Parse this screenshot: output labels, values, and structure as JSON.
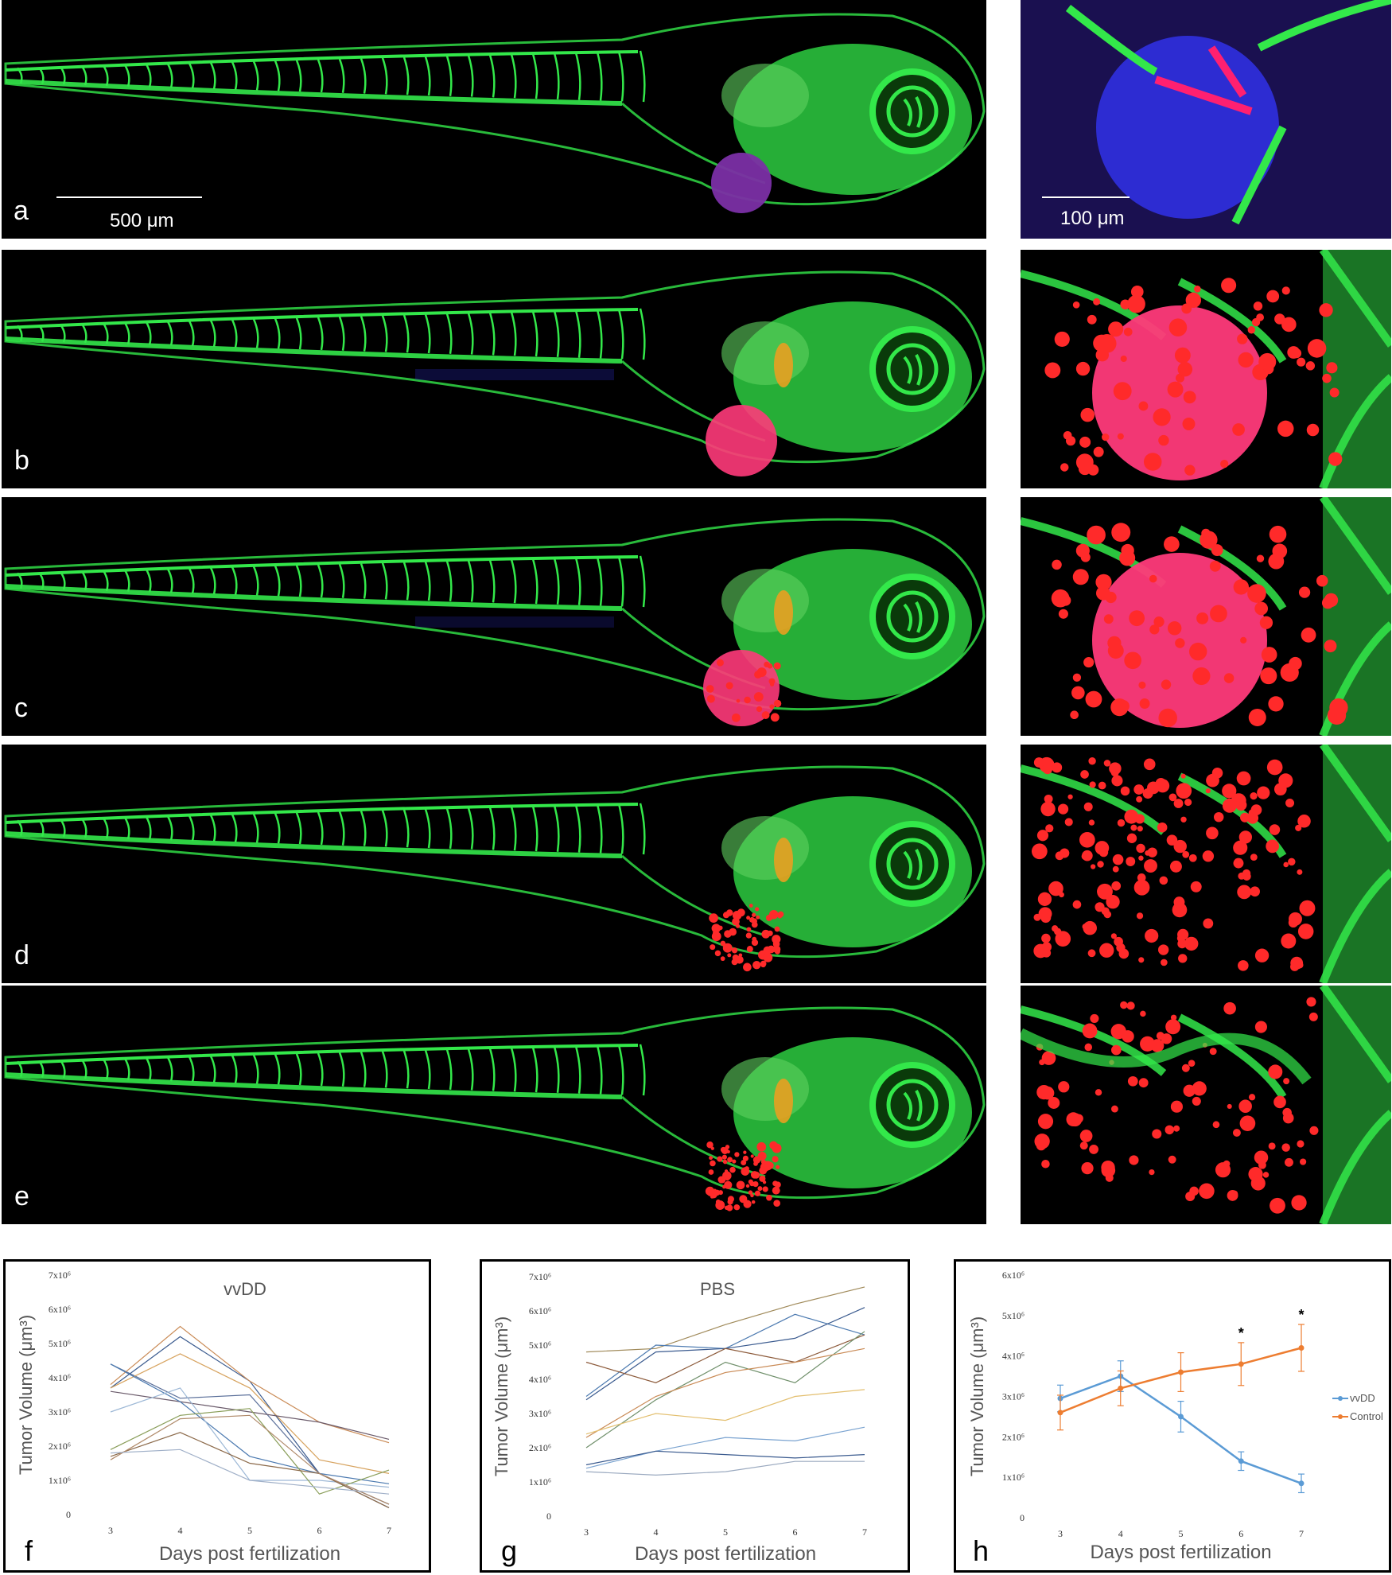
{
  "image_panels": [
    {
      "label": "a",
      "scale_label": "500 μm",
      "zoom_scale_label": "100 μm"
    },
    {
      "label": "b"
    },
    {
      "label": "c"
    },
    {
      "label": "d"
    },
    {
      "label": "e"
    }
  ],
  "colors": {
    "vessel_green": "#33e84a",
    "tumor_red": "#ff2a2a",
    "tumor_pink": "#ff3a7a",
    "nuclear_blue": "#3030e0",
    "background": "#000000",
    "vvdd_line": "#5b9bd5",
    "control_line": "#ed7d31"
  },
  "chart_data": [
    {
      "panel_label": "f",
      "type": "line",
      "title": "vvDD",
      "xlabel": "Days post fertilization",
      "ylabel": "Tumor Volume (μm³)",
      "x": [
        3,
        4,
        5,
        6,
        7
      ],
      "ylim": [
        0,
        7000000
      ],
      "yticks": [
        "0",
        "1x10⁶",
        "2x10⁶",
        "3x10⁶",
        "4x10⁶",
        "5x10⁶",
        "6x10⁶",
        "7x10⁶"
      ],
      "series": [
        {
          "color": "#5a6f99",
          "values": [
            4400000,
            3400000,
            3500000,
            1200000,
            200000
          ]
        },
        {
          "color": "#3b5b8f",
          "values": [
            3700000,
            5200000,
            3900000,
            1200000,
            300000
          ]
        },
        {
          "color": "#d7a35f",
          "values": [
            3700000,
            4700000,
            3700000,
            1600000,
            1200000
          ]
        },
        {
          "color": "#c98a55",
          "values": [
            3800000,
            5500000,
            3900000,
            2700000,
            2100000
          ]
        },
        {
          "color": "#6a5a6a",
          "values": [
            3600000,
            3300000,
            3000000,
            2700000,
            2200000
          ]
        },
        {
          "color": "#4c7ab0",
          "values": [
            4400000,
            3300000,
            1700000,
            1200000,
            900000
          ]
        },
        {
          "color": "#9db8d6",
          "values": [
            3000000,
            3700000,
            1000000,
            1000000,
            800000
          ]
        },
        {
          "color": "#8a9e5a",
          "values": [
            1900000,
            2900000,
            3100000,
            600000,
            1300000
          ]
        },
        {
          "color": "#8c6a4a",
          "values": [
            1700000,
            2400000,
            1500000,
            1200000,
            200000
          ]
        },
        {
          "color": "#b08a6a",
          "values": [
            1600000,
            2800000,
            2900000,
            1200000,
            300000
          ]
        },
        {
          "color": "#a0b0c8",
          "values": [
            1800000,
            1900000,
            1000000,
            800000,
            600000
          ]
        }
      ]
    },
    {
      "panel_label": "g",
      "type": "line",
      "title": "PBS",
      "xlabel": "Days post fertilization",
      "ylabel": "Tumor Volume (μm³)",
      "x": [
        3,
        4,
        5,
        6,
        7
      ],
      "ylim": [
        0,
        7000000
      ],
      "yticks": [
        "0",
        "1x10⁶",
        "2x10⁶",
        "3x10⁶",
        "4x10⁶",
        "5x10⁶",
        "6x10⁶",
        "7x10⁶"
      ],
      "series": [
        {
          "color": "#a08a5a",
          "values": [
            4800000,
            4900000,
            5600000,
            6200000,
            6700000
          ]
        },
        {
          "color": "#4c7ab0",
          "values": [
            3500000,
            5000000,
            4900000,
            5900000,
            5300000
          ]
        },
        {
          "color": "#3b5b8f",
          "values": [
            3400000,
            4800000,
            4900000,
            5200000,
            6100000
          ]
        },
        {
          "color": "#8c5a3a",
          "values": [
            4500000,
            3900000,
            4900000,
            4500000,
            5300000
          ]
        },
        {
          "color": "#6f8f6a",
          "values": [
            2000000,
            3400000,
            4500000,
            3900000,
            5400000
          ]
        },
        {
          "color": "#c98a55",
          "values": [
            2300000,
            3500000,
            4200000,
            4500000,
            4900000
          ]
        },
        {
          "color": "#e3bf6f",
          "values": [
            2400000,
            3000000,
            2800000,
            3500000,
            3700000
          ]
        },
        {
          "color": "#7aa3d0",
          "values": [
            1400000,
            1900000,
            2300000,
            2200000,
            2600000
          ]
        },
        {
          "color": "#3b5b8f",
          "values": [
            1500000,
            1900000,
            1800000,
            1700000,
            1800000
          ]
        },
        {
          "color": "#9aa9bf",
          "values": [
            1300000,
            1200000,
            1300000,
            1600000,
            1600000
          ]
        }
      ]
    },
    {
      "panel_label": "h",
      "type": "line",
      "title": "",
      "xlabel": "Days post fertilization",
      "ylabel": "Tumor Volume (μm³)",
      "x": [
        3,
        4,
        5,
        6,
        7
      ],
      "ylim": [
        0,
        6000000
      ],
      "yticks": [
        "0",
        "1x10⁶",
        "2x10⁶",
        "3x10⁶",
        "4x10⁶",
        "5x10⁶",
        "6x10⁶"
      ],
      "legend_position": "right",
      "significance": [
        {
          "x": 6,
          "label": "*"
        },
        {
          "x": 7,
          "label": "*"
        }
      ],
      "series": [
        {
          "name": "vvDD",
          "color": "#5b9bd5",
          "values": [
            2950000,
            3500000,
            2500000,
            1400000,
            850000
          ],
          "errors": [
            330000,
            380000,
            380000,
            230000,
            230000
          ]
        },
        {
          "name": "Control",
          "color": "#ed7d31",
          "values": [
            2600000,
            3200000,
            3600000,
            3800000,
            4200000
          ],
          "errors": [
            430000,
            430000,
            480000,
            530000,
            580000
          ]
        }
      ]
    }
  ]
}
